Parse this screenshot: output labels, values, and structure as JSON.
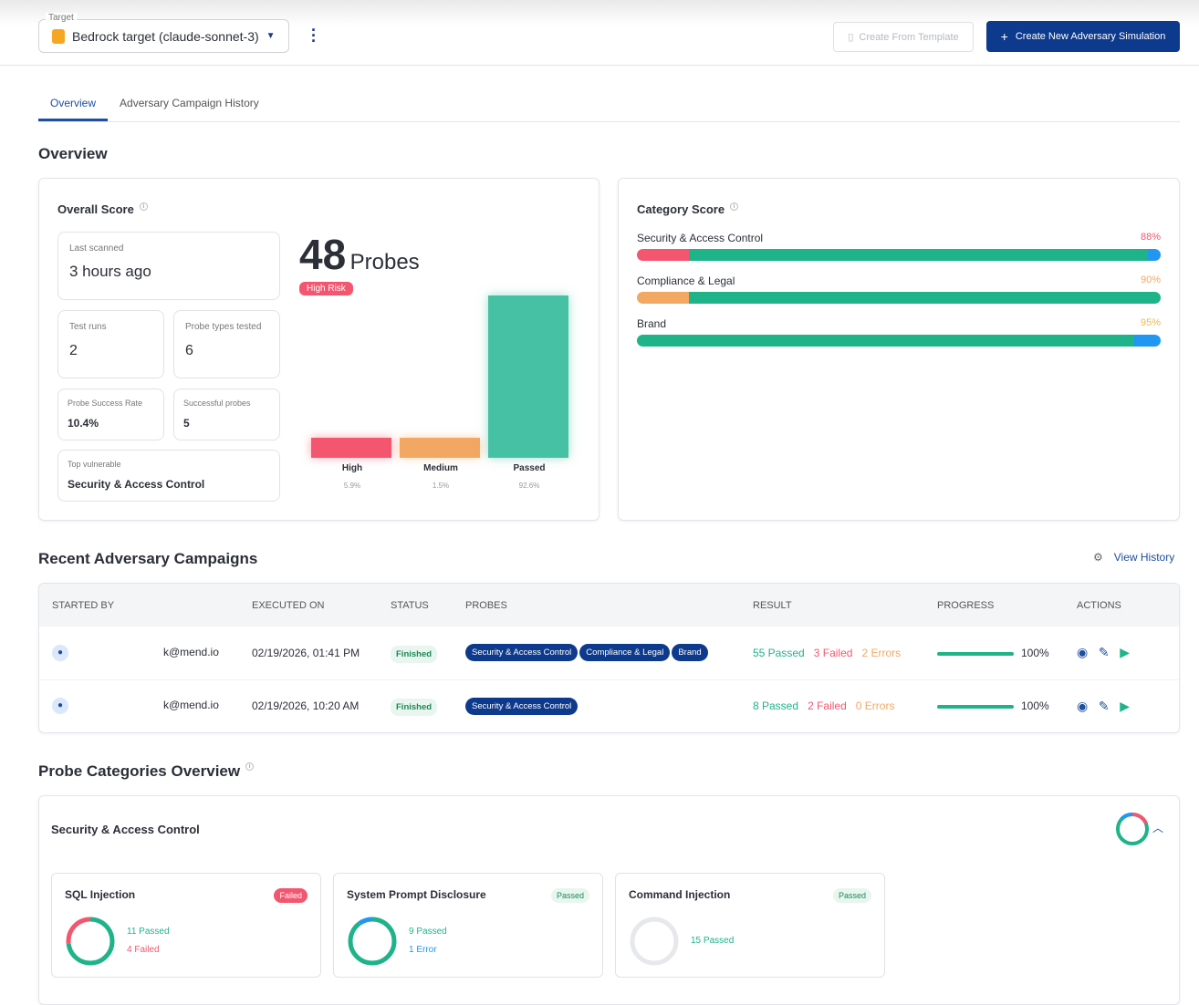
{
  "header": {
    "target_label": "Target",
    "target_value": "Bedrock target (claude-sonnet-3)",
    "create_template": "Create From Template",
    "create_new": "Create New Adversary Simulation"
  },
  "tabs": [
    {
      "label": "Overview",
      "active": true
    },
    {
      "label": "Adversary Campaign History",
      "active": false
    }
  ],
  "overview": {
    "title": "Overview",
    "overall": {
      "title": "Overall Score",
      "last_scanned_label": "Last scanned",
      "last_scanned": "3 hours ago",
      "test_runs_label": "Test runs",
      "test_runs": "2",
      "probe_types_label": "Probe types tested",
      "probe_types": "6",
      "success_rate_label": "Probe Success Rate",
      "success_rate": "10.4%",
      "successful_label": "Successful probes",
      "successful": "5",
      "top_vuln_label": "Top vulnerable",
      "top_vuln": "Security & Access Control",
      "probes_count": "48",
      "probes_label": "Probes",
      "risk": "High Risk"
    },
    "chart_data": {
      "type": "bar",
      "categories": [
        "High",
        "Medium",
        "Passed"
      ],
      "values": [
        5.9,
        1.5,
        92.6
      ],
      "labels": [
        "5.9%",
        "1.5%",
        "92.6%"
      ],
      "colors": [
        "#f4566f",
        "#f2a863",
        "#47c1a3"
      ]
    },
    "category": {
      "title": "Category Score",
      "items": [
        {
          "name": "Security & Access Control",
          "pct": "88%",
          "color": "#f4566f",
          "fail": 10,
          "pass": 87.5,
          "other": 2.5
        },
        {
          "name": "Compliance & Legal",
          "pct": "90%",
          "color": "#f2a863",
          "fail": 10,
          "pass": 90,
          "other": 0
        },
        {
          "name": "Brand",
          "pct": "95%",
          "color": "#f2b94a",
          "fail": 0,
          "pass": 95,
          "other": 5
        }
      ]
    }
  },
  "campaigns": {
    "title": "Recent Adversary Campaigns",
    "view_history": "View History",
    "columns": [
      "Started By",
      "Executed On",
      "Status",
      "Probes",
      "Result",
      "Progress",
      "Actions"
    ],
    "rows": [
      {
        "user": "k@mend.io",
        "executed": "02/19/2026, 01:41 PM",
        "status": "Finished",
        "probes": [
          "Security & Access Control",
          "Compliance & Legal",
          "Brand"
        ],
        "passed": "55 Passed",
        "failed": "3 Failed",
        "errors": "2 Errors",
        "progress": "100%"
      },
      {
        "user": "k@mend.io",
        "executed": "02/19/2026, 10:20 AM",
        "status": "Finished",
        "probes": [
          "Security & Access Control"
        ],
        "passed": "8 Passed",
        "failed": "2 Failed",
        "errors": "0 Errors",
        "progress": "100%"
      }
    ]
  },
  "probe_categories": {
    "title": "Probe Categories Overview",
    "section": "Security & Access Control",
    "probes": [
      {
        "name": "SQL Injection",
        "badge": "Failed",
        "l1": "11 Passed",
        "l2": "4 Failed"
      },
      {
        "name": "System Prompt Disclosure",
        "badge": "Passed",
        "l1": "9 Passed",
        "l2": "1 Error"
      },
      {
        "name": "Command Injection",
        "badge": "Passed",
        "l1": "15 Passed"
      }
    ]
  }
}
